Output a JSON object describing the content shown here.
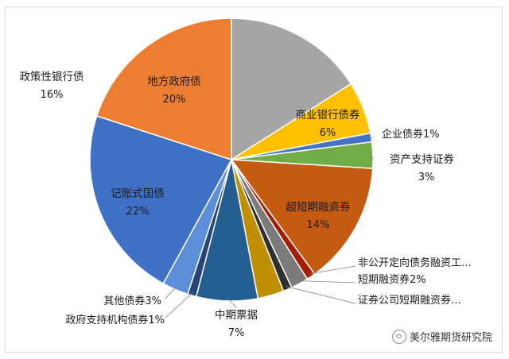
{
  "chart_data": {
    "type": "pie",
    "title": "",
    "slices": [
      {
        "name": "政策性银行债",
        "label": "16%",
        "value": 16,
        "color": "#A5A5A5"
      },
      {
        "name": "商业银行债券",
        "label": "6%",
        "value": 6,
        "color": "#FFC000"
      },
      {
        "name": "企业债券",
        "label": "1%",
        "value": 1,
        "color": "#4472C4"
      },
      {
        "name": "资产支持证券",
        "label": "3%",
        "value": 3,
        "color": "#70AD47"
      },
      {
        "name": "超短期融资券",
        "label": "14%",
        "value": 14,
        "color": "#C55A11"
      },
      {
        "name": "非公开定向债务融资工…",
        "label": "",
        "value": 1,
        "color": "#A61C00"
      },
      {
        "name": "短期融资券",
        "label": "2%",
        "value": 2,
        "color": "#7B7B7B"
      },
      {
        "name": "证券公司短期融资券…",
        "label": "",
        "value": 1,
        "color": "#2F2F2F"
      },
      {
        "name": "",
        "label": "",
        "value": 3,
        "color": "#BF8F00"
      },
      {
        "name": "中期票据",
        "label": "7%",
        "value": 7,
        "color": "#255E91"
      },
      {
        "name": "政府支持机构债券",
        "label": "1%",
        "value": 1,
        "color": "#264478"
      },
      {
        "name": "其他债券",
        "label": "3%",
        "value": 3,
        "color": "#5B8FD9"
      },
      {
        "name": "记账式国债",
        "label": "22%",
        "value": 22,
        "color": "#3E71C6"
      },
      {
        "name": "地方政府债",
        "label": "20%",
        "value": 20,
        "color": "#ED7D31"
      }
    ]
  },
  "watermark": {
    "text": "美尔雅期货研究院"
  }
}
